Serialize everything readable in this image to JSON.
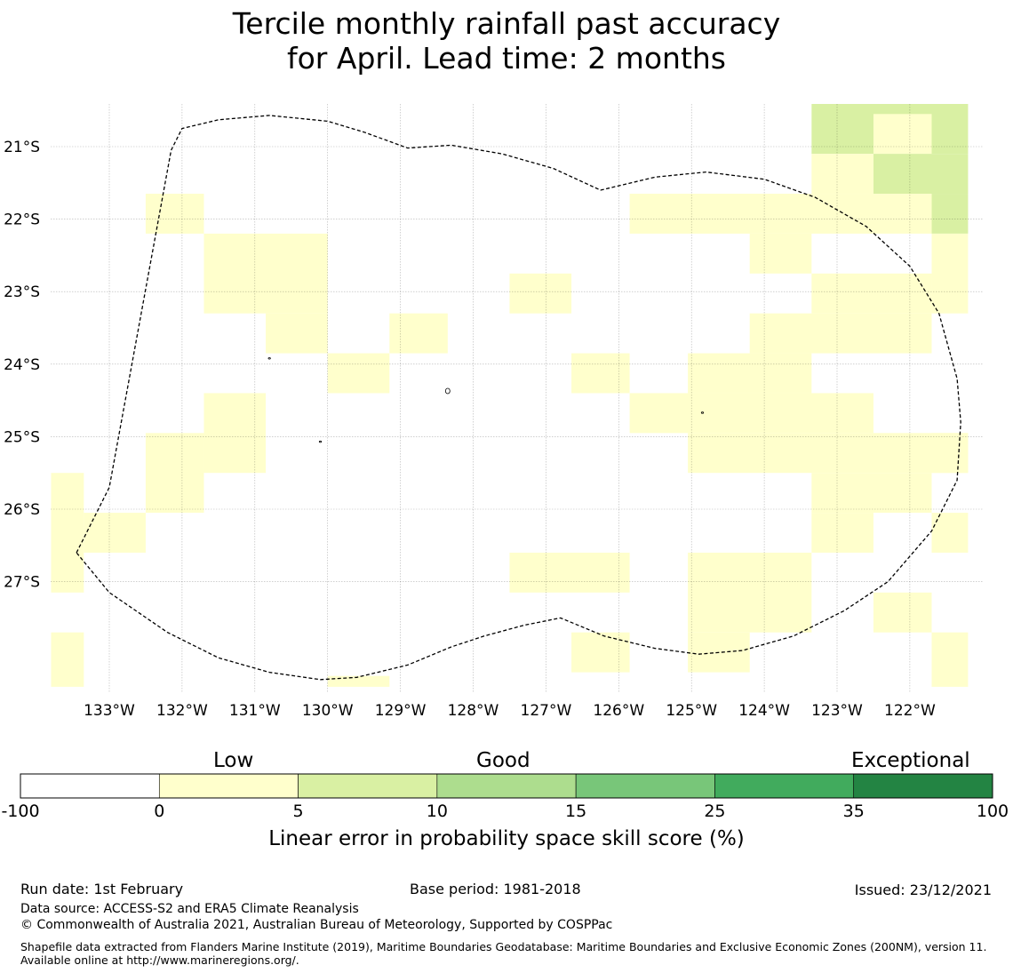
{
  "title": {
    "line1": "Tercile monthly rainfall past accuracy",
    "line2": "for April. Lead time: 2 months"
  },
  "chart_data": {
    "type": "heatmap",
    "title": "Tercile monthly rainfall past accuracy for April. Lead time: 2 months",
    "x_ticks": [
      "133°W",
      "132°W",
      "131°W",
      "130°W",
      "129°W",
      "128°W",
      "127°W",
      "126°W",
      "125°W",
      "124°W",
      "123°W",
      "122°W"
    ],
    "y_ticks": [
      "21°S",
      "22°S",
      "23°S",
      "24°S",
      "25°S",
      "26°S",
      "27°S"
    ],
    "xlim": [
      -133.8,
      -121.2
    ],
    "ylim": [
      -28.5,
      -20.4
    ],
    "grid": true,
    "colorbar": {
      "label": "Linear error in probability space skill score (%)",
      "ticks": [
        "-100",
        "0",
        "5",
        "10",
        "15",
        "25",
        "35",
        "100"
      ],
      "colors": [
        "#ffffff",
        "#ffffcc",
        "#d9f0a3",
        "#addd8e",
        "#78c679",
        "#41ab5d",
        "#238443"
      ],
      "category_labels": [
        "Low",
        "Good",
        "Exceptional"
      ]
    },
    "cells": [
      {
        "lon0": -123.35,
        "lon1": -121.2,
        "lat0": -21.1,
        "lat1": -20.4,
        "score": 7
      },
      {
        "lon0": -122.5,
        "lon1": -121.7,
        "lat0": -21.1,
        "lat1": -20.55,
        "score": 3
      },
      {
        "lon0": -122.5,
        "lon1": -121.2,
        "lat0": -21.65,
        "lat1": -21.1,
        "score": 7
      },
      {
        "lon0": -121.7,
        "lon1": -121.2,
        "lat0": -22.2,
        "lat1": -21.65,
        "score": 7
      },
      {
        "lon0": -123.35,
        "lon1": -122.5,
        "lat0": -21.65,
        "lat1": -21.1,
        "score": 3
      },
      {
        "lon0": -125.85,
        "lon1": -121.7,
        "lat0": -22.2,
        "lat1": -21.65,
        "score": 3
      },
      {
        "lon0": -124.2,
        "lon1": -123.35,
        "lat0": -22.75,
        "lat1": -22.2,
        "score": 3
      },
      {
        "lon0": -121.7,
        "lon1": -121.2,
        "lat0": -23.3,
        "lat1": -22.2,
        "score": 3
      },
      {
        "lon0": -123.35,
        "lon1": -121.7,
        "lat0": -23.3,
        "lat1": -22.75,
        "score": 3
      },
      {
        "lon0": -124.2,
        "lon1": -121.7,
        "lat0": -23.85,
        "lat1": -23.3,
        "score": 3
      },
      {
        "lon0": -125.05,
        "lon1": -123.35,
        "lat0": -24.4,
        "lat1": -23.85,
        "score": 3
      },
      {
        "lon0": -125.85,
        "lon1": -122.5,
        "lat0": -24.95,
        "lat1": -24.4,
        "score": 3
      },
      {
        "lon0": -121.7,
        "lon1": -121.2,
        "lat0": -25.5,
        "lat1": -24.95,
        "score": 3
      },
      {
        "lon0": -125.05,
        "lon1": -121.2,
        "lat0": -25.5,
        "lat1": -24.95,
        "score": 3
      },
      {
        "lon0": -123.35,
        "lon1": -121.7,
        "lat0": -26.05,
        "lat1": -25.5,
        "score": 3
      },
      {
        "lon0": -123.35,
        "lon1": -122.5,
        "lat0": -26.6,
        "lat1": -26.05,
        "score": 3
      },
      {
        "lon0": -121.7,
        "lon1": -121.2,
        "lat0": -26.6,
        "lat1": -26.05,
        "score": 3
      },
      {
        "lon0": -125.05,
        "lon1": -123.35,
        "lat0": -27.7,
        "lat1": -26.6,
        "score": 3
      },
      {
        "lon0": -122.5,
        "lon1": -121.7,
        "lat0": -27.7,
        "lat1": -27.15,
        "score": 3
      },
      {
        "lon0": -125.05,
        "lon1": -124.2,
        "lat0": -28.25,
        "lat1": -27.7,
        "score": 3
      },
      {
        "lon0": -121.7,
        "lon1": -121.2,
        "lat0": -28.45,
        "lat1": -27.7,
        "score": 3
      },
      {
        "lon0": -126.65,
        "lon1": -125.85,
        "lat0": -24.4,
        "lat1": -23.85,
        "score": 3
      },
      {
        "lon0": -127.5,
        "lon1": -126.65,
        "lat0": -23.3,
        "lat1": -22.75,
        "score": 3
      },
      {
        "lon0": -127.5,
        "lon1": -125.85,
        "lat0": -27.15,
        "lat1": -26.6,
        "score": 3
      },
      {
        "lon0": -126.65,
        "lon1": -125.85,
        "lat0": -28.25,
        "lat1": -27.7,
        "score": 3
      },
      {
        "lon0": -129.15,
        "lon1": -128.35,
        "lat0": -23.85,
        "lat1": -23.3,
        "score": 3
      },
      {
        "lon0": -130.0,
        "lon1": -129.15,
        "lat0": -24.4,
        "lat1": -23.85,
        "score": 3
      },
      {
        "lon0": -131.7,
        "lon1": -130.0,
        "lat0": -23.3,
        "lat1": -22.2,
        "score": 3
      },
      {
        "lon0": -130.85,
        "lon1": -130.0,
        "lat0": -23.85,
        "lat1": -23.3,
        "score": 3
      },
      {
        "lon0": -132.5,
        "lon1": -131.7,
        "lat0": -22.2,
        "lat1": -21.65,
        "score": 3
      },
      {
        "lon0": -131.7,
        "lon1": -130.85,
        "lat0": -25.5,
        "lat1": -24.4,
        "score": 3
      },
      {
        "lon0": -132.5,
        "lon1": -131.7,
        "lat0": -26.05,
        "lat1": -24.95,
        "score": 3
      },
      {
        "lon0": -133.8,
        "lon1": -133.35,
        "lat0": -27.15,
        "lat1": -25.5,
        "score": 3
      },
      {
        "lon0": -133.35,
        "lon1": -132.5,
        "lat0": -26.6,
        "lat1": -26.05,
        "score": 3
      },
      {
        "lon0": -133.8,
        "lon1": -133.35,
        "lat0": -28.45,
        "lat1": -27.7,
        "score": 3
      },
      {
        "lon0": -130.0,
        "lon1": -129.15,
        "lat0": -28.45,
        "lat1": -28.3,
        "score": 3
      }
    ],
    "boundary": [
      [
        -133.45,
        -26.6
      ],
      [
        -133.0,
        -25.7
      ],
      [
        -132.15,
        -21.05
      ],
      [
        -132.0,
        -20.75
      ],
      [
        -131.5,
        -20.63
      ],
      [
        -130.8,
        -20.57
      ],
      [
        -130.0,
        -20.65
      ],
      [
        -129.5,
        -20.8
      ],
      [
        -128.9,
        -21.02
      ],
      [
        -128.3,
        -20.98
      ],
      [
        -127.6,
        -21.1
      ],
      [
        -126.9,
        -21.3
      ],
      [
        -126.25,
        -21.6
      ],
      [
        -125.5,
        -21.42
      ],
      [
        -124.8,
        -21.35
      ],
      [
        -124.0,
        -21.45
      ],
      [
        -123.3,
        -21.7
      ],
      [
        -122.6,
        -22.1
      ],
      [
        -122.0,
        -22.65
      ],
      [
        -121.6,
        -23.3
      ],
      [
        -121.35,
        -24.2
      ],
      [
        -121.3,
        -24.8
      ],
      [
        -121.35,
        -25.6
      ],
      [
        -121.7,
        -26.3
      ],
      [
        -122.3,
        -27.0
      ],
      [
        -122.9,
        -27.4
      ],
      [
        -123.6,
        -27.75
      ],
      [
        -124.3,
        -27.95
      ],
      [
        -124.9,
        -28.0
      ],
      [
        -125.5,
        -27.92
      ],
      [
        -126.2,
        -27.75
      ],
      [
        -126.8,
        -27.5
      ],
      [
        -127.3,
        -27.6
      ],
      [
        -127.85,
        -27.75
      ],
      [
        -128.3,
        -27.9
      ],
      [
        -128.9,
        -28.15
      ],
      [
        -129.6,
        -28.32
      ],
      [
        -130.1,
        -28.35
      ],
      [
        -130.8,
        -28.25
      ],
      [
        -131.5,
        -28.05
      ],
      [
        -132.2,
        -27.7
      ],
      [
        -133.0,
        -27.15
      ],
      [
        -133.45,
        -26.6
      ]
    ]
  },
  "colorbar_labels": {
    "low": "Low",
    "good": "Good",
    "exceptional": "Exceptional",
    "title": "Linear error in probability space skill score (%)"
  },
  "footer": {
    "run_date": "Run date: 1st February",
    "base_period": "Base period: 1981-2018",
    "issued": "Issued: 23/12/2021",
    "data_source": "Data source: ACCESS-S2 and ERA5 Climate Reanalysis",
    "copyright": "© Commonwealth of Australia 2021, Australian Bureau of Meteorology, Supported by COSPPac",
    "shapefile": "Shapefile data extracted from Flanders Marine Institute (2019), Maritime Boundaries Geodatabase: Maritime Boundaries and Exclusive Economic Zones (200NM), version 11. Available online at http://www.marineregions.org/."
  }
}
